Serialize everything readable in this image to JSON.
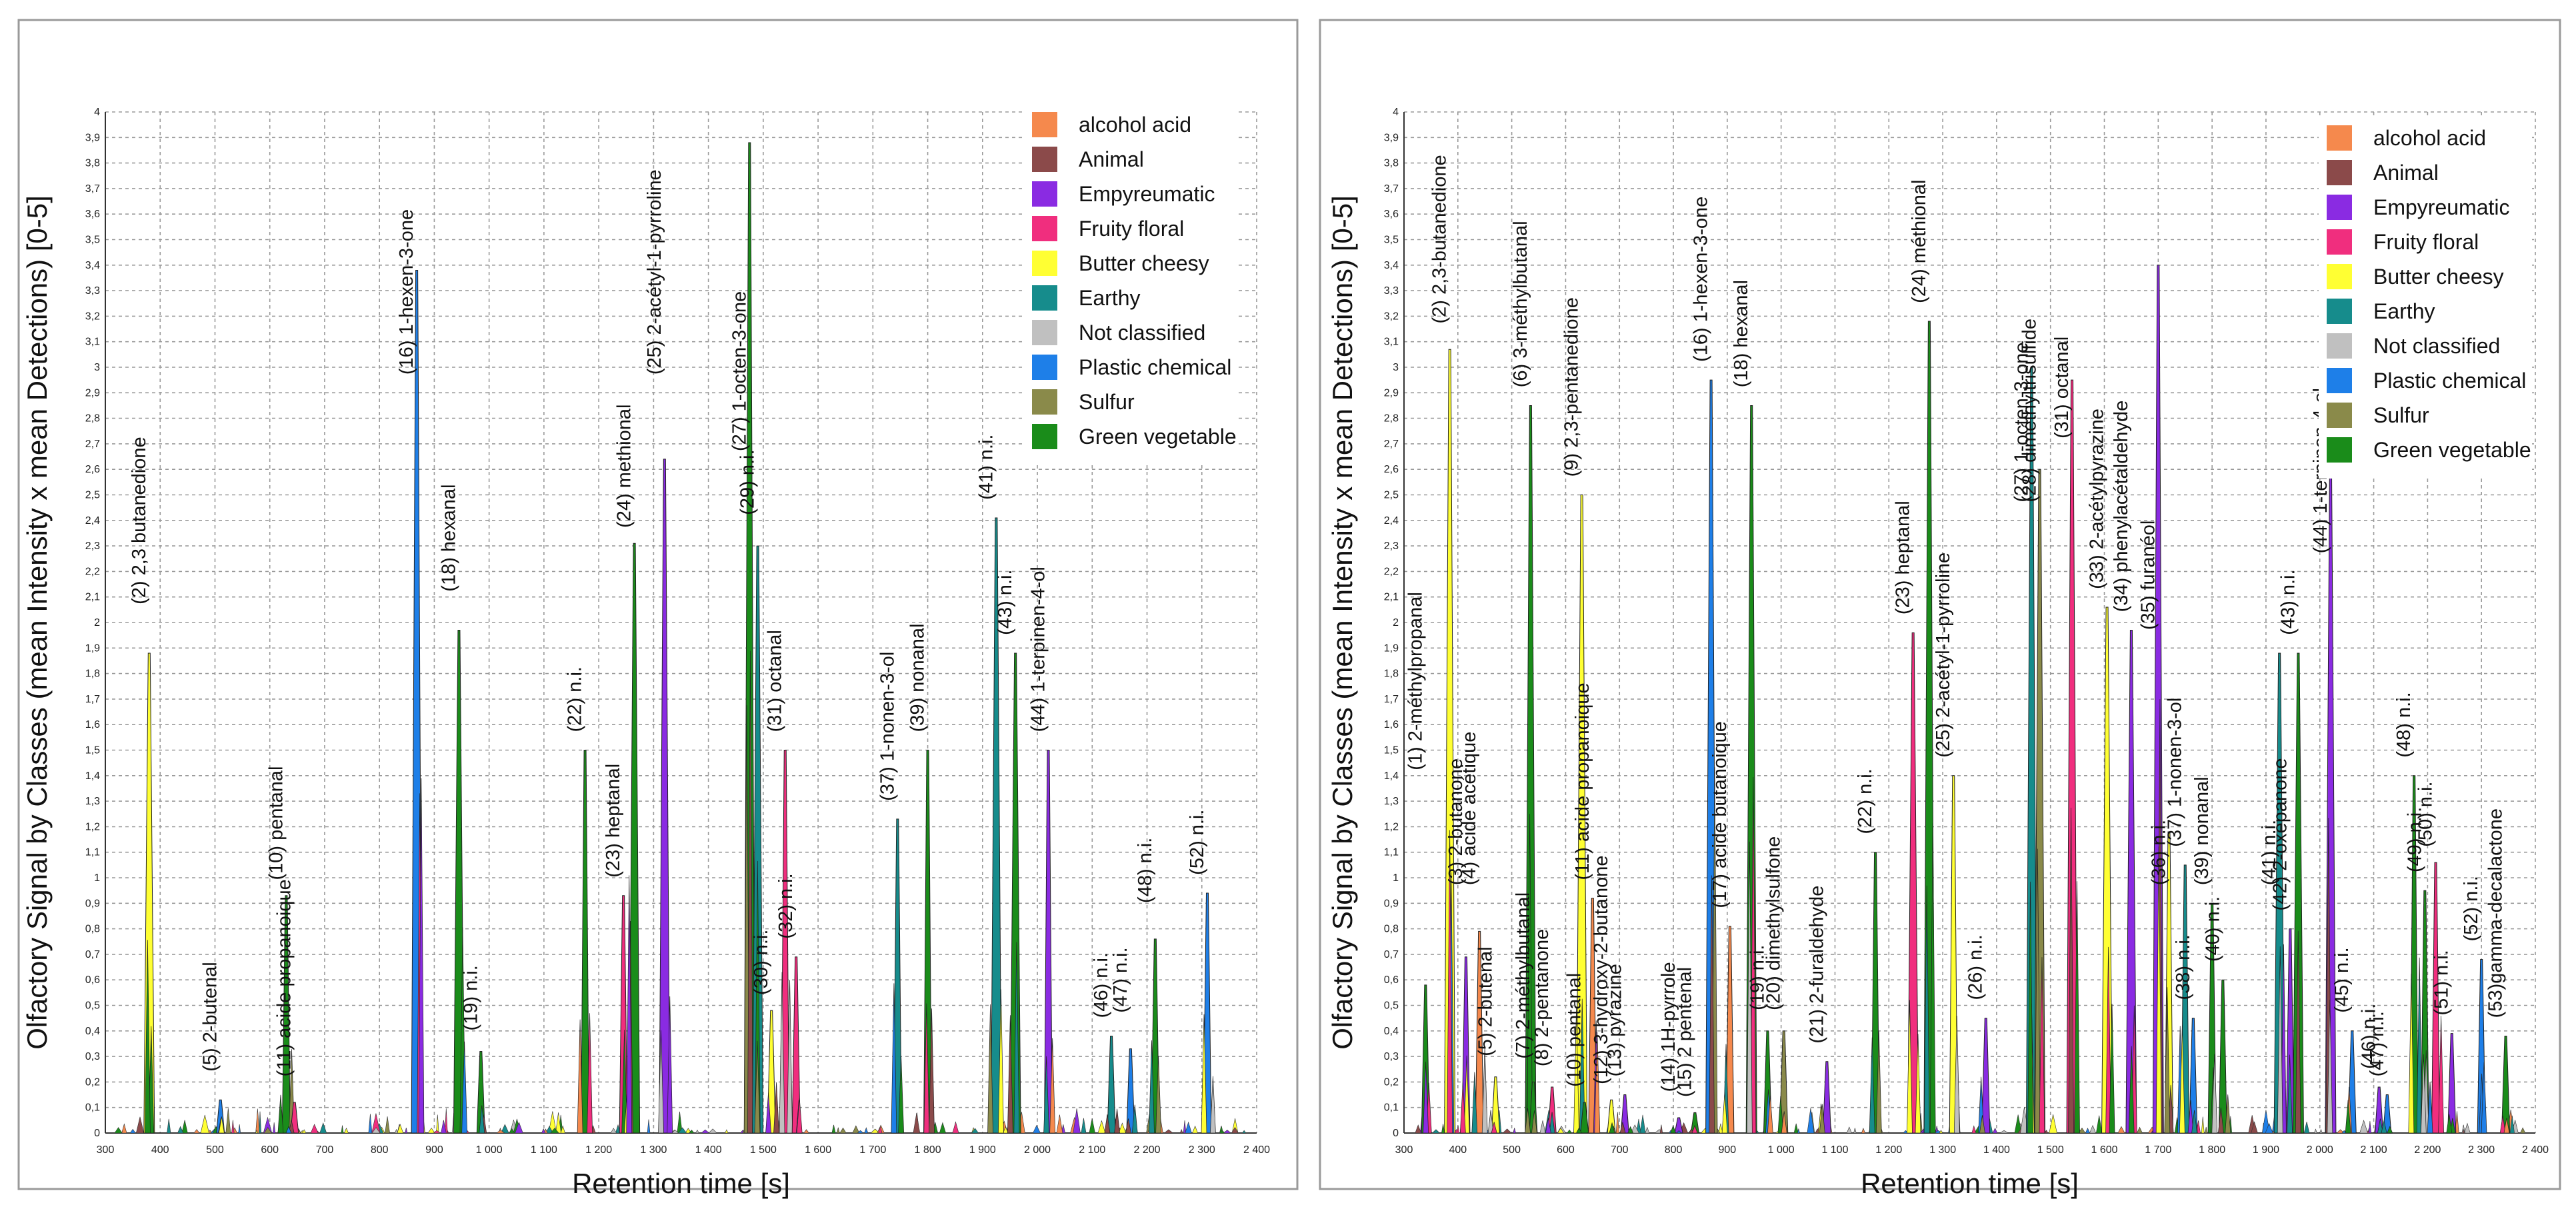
{
  "figure": {
    "divider": {
      "color": "#9a9a9a"
    }
  },
  "legend": {
    "items": [
      {
        "label": "alcohol acid",
        "color": "#F5894D"
      },
      {
        "label": "Animal",
        "color": "#8B4A4A"
      },
      {
        "label": "Empyreumatic",
        "color": "#8A2BE2"
      },
      {
        "label": "Fruity floral",
        "color": "#F02E7E"
      },
      {
        "label": "Butter cheesy",
        "color": "#FFFF33"
      },
      {
        "label": "Earthy",
        "color": "#168C8C"
      },
      {
        "label": "Not classified",
        "color": "#C0C0C0"
      },
      {
        "label": "Plastic chemical",
        "color": "#1E7FE8"
      },
      {
        "label": "Sulfur",
        "color": "#8A8A4A"
      },
      {
        "label": "Green vegetable",
        "color": "#1A8C1A"
      }
    ]
  },
  "chart_data": [
    {
      "type": "area",
      "title": "",
      "xlabel": "Retention time [s]",
      "ylabel": "Olfactory Signal by Classes (mean Intensity x mean Detections) [0-5]",
      "xlim": [
        300,
        2400
      ],
      "ylim": [
        0,
        4
      ],
      "grid": true,
      "legend": "top-right",
      "xticks": [
        "300",
        "400",
        "500",
        "600",
        "700",
        "800",
        "900",
        "1 000",
        "1 100",
        "1 200",
        "1 300",
        "1 400",
        "1 500",
        "1 600",
        "1 700",
        "1 800",
        "1 900",
        "2 000",
        "2 100",
        "2 200",
        "2 300",
        "2 400"
      ],
      "yticks": [
        "0",
        "0,1",
        "0,2",
        "0,3",
        "0,4",
        "0,5",
        "0,6",
        "0,7",
        "0,8",
        "0,9",
        "1",
        "1,1",
        "1,2",
        "1,3",
        "1,4",
        "1,5",
        "1,6",
        "1,7",
        "1,8",
        "1,9",
        "2",
        "2,1",
        "2,2",
        "2,3",
        "2,4",
        "2,5",
        "2,6",
        "2,7",
        "2,8",
        "2,9",
        "3",
        "3,1",
        "3,2",
        "3,3",
        "3,4",
        "3,5",
        "3,6",
        "3,7",
        "3,8",
        "3,9",
        "4"
      ],
      "peaks": [
        {
          "x": 380,
          "y": 1.88,
          "class": "Butter cheesy",
          "label": "(2) 2,3 butanedione",
          "ly": 2.05
        },
        {
          "x": 510,
          "y": 0.13,
          "class": "Plastic chemical",
          "label": "(5) 2-butenal",
          "ly": 0.22
        },
        {
          "x": 630,
          "y": 0.93,
          "class": "Green vegetable",
          "label": "(10) pentanal",
          "ly": 0.97
        },
        {
          "x": 645,
          "y": 0.12,
          "class": "Fruity floral",
          "label": "(11) acide propanoique",
          "ly": 0.2
        },
        {
          "x": 868,
          "y": 3.38,
          "class": "Plastic chemical",
          "label": "(16) 1-hexen-3-one",
          "ly": 2.95
        },
        {
          "x": 945,
          "y": 1.97,
          "class": "Green vegetable",
          "label": "(18) hexanal",
          "ly": 2.1
        },
        {
          "x": 985,
          "y": 0.32,
          "class": "Green vegetable",
          "label": "(19) n.i.",
          "ly": 0.38
        },
        {
          "x": 1175,
          "y": 1.5,
          "class": "Green vegetable",
          "label": "(22) n.i.",
          "ly": 1.55
        },
        {
          "x": 1245,
          "y": 0.93,
          "class": "Fruity floral",
          "label": "(23) heptanal",
          "ly": 0.98
        },
        {
          "x": 1265,
          "y": 2.31,
          "class": "Green vegetable",
          "label": "(24) methional",
          "ly": 2.35
        },
        {
          "x": 1320,
          "y": 2.64,
          "class": "Empyreumatic",
          "label": "(25) 2-acétyl-1-pyrroline",
          "ly": 2.95
        },
        {
          "x": 1475,
          "y": 3.88,
          "class": "Green vegetable",
          "label": "(27) 1-octen-3-one",
          "ly": 2.65
        },
        {
          "x": 1490,
          "y": 2.3,
          "class": "Earthy",
          "label": "(29) n.i.",
          "ly": 2.4
        },
        {
          "x": 1515,
          "y": 0.48,
          "class": "Butter cheesy",
          "label": "(30) n.i.",
          "ly": 0.52
        },
        {
          "x": 1540,
          "y": 1.5,
          "class": "Fruity floral",
          "label": "(31) octanal",
          "ly": 1.55
        },
        {
          "x": 1560,
          "y": 0.69,
          "class": "Fruity floral",
          "label": "(32) n.i.",
          "ly": 0.74
        },
        {
          "x": 1745,
          "y": 1.23,
          "class": "Earthy",
          "label": "(37) 1-nonen-3-ol",
          "ly": 1.28
        },
        {
          "x": 1800,
          "y": 1.5,
          "class": "Green vegetable",
          "label": "(39) nonanal",
          "ly": 1.55
        },
        {
          "x": 1925,
          "y": 2.41,
          "class": "Earthy",
          "label": "(41) n.i.",
          "ly": 2.46
        },
        {
          "x": 1960,
          "y": 1.88,
          "class": "Green vegetable",
          "label": "(43) n.i.",
          "ly": 1.93
        },
        {
          "x": 2020,
          "y": 1.5,
          "class": "Empyreumatic",
          "label": "(44) 1-terpinen-4-ol",
          "ly": 1.55
        },
        {
          "x": 2135,
          "y": 0.38,
          "class": "Earthy",
          "label": "(46) n.i.",
          "ly": 0.43
        },
        {
          "x": 2170,
          "y": 0.33,
          "class": "Plastic chemical",
          "label": "(47) n.i.",
          "ly": 0.45
        },
        {
          "x": 2215,
          "y": 0.76,
          "class": "Green vegetable",
          "label": "(48) n.i.",
          "ly": 0.88
        },
        {
          "x": 2310,
          "y": 0.94,
          "class": "Plastic chemical",
          "label": "(52) n.i.",
          "ly": 0.99
        }
      ]
    },
    {
      "type": "area",
      "title": "",
      "xlabel": "Retention time [s]",
      "ylabel": "Olfactory Signal by Classes (mean Intensity x mean Detections) [0-5]",
      "xlim": [
        300,
        2400
      ],
      "ylim": [
        0,
        4
      ],
      "grid": true,
      "legend": "top-right",
      "xticks": [
        "300",
        "400",
        "500",
        "600",
        "700",
        "800",
        "900",
        "1 000",
        "1 100",
        "1 200",
        "1 300",
        "1 400",
        "1 500",
        "1 600",
        "1 700",
        "1 800",
        "1 900",
        "2 000",
        "2 100",
        "2 200",
        "2 300",
        "2 400"
      ],
      "yticks": [
        "0",
        "0,1",
        "0,2",
        "0,3",
        "0,4",
        "0,5",
        "0,6",
        "0,7",
        "0,8",
        "0,9",
        "1",
        "1,1",
        "1,2",
        "1,3",
        "1,4",
        "1,5",
        "1,6",
        "1,7",
        "1,8",
        "1,9",
        "2",
        "2,1",
        "2,2",
        "2,3",
        "2,4",
        "2,5",
        "2,6",
        "2,7",
        "2,8",
        "2,9",
        "3",
        "3,1",
        "3,2",
        "3,3",
        "3,4",
        "3,5",
        "3,6",
        "3,7",
        "3,8",
        "3,9",
        "4"
      ],
      "peaks": [
        {
          "x": 340,
          "y": 0.58,
          "class": "Green vegetable",
          "label": "(1) 2-méthylpropanal",
          "ly": 1.4
        },
        {
          "x": 385,
          "y": 3.07,
          "class": "Butter cheesy",
          "label": "(2) 2,3-butanedione",
          "ly": 3.15
        },
        {
          "x": 415,
          "y": 0.69,
          "class": "Empyreumatic",
          "label": "(3) 2-butanone",
          "ly": 0.95
        },
        {
          "x": 440,
          "y": 0.79,
          "class": "alcohol acid",
          "label": "(4) acide acétique",
          "ly": 0.95
        },
        {
          "x": 470,
          "y": 0.22,
          "class": "Butter cheesy",
          "label": "(5) 2-butenal",
          "ly": 0.28
        },
        {
          "x": 535,
          "y": 2.85,
          "class": "Green vegetable",
          "label": "(6) 3-méthylbutanal",
          "ly": 2.9
        },
        {
          "x": 540,
          "y": 0.2,
          "class": "Green vegetable",
          "label": "(7) 2-méthylbutanal",
          "ly": 0.27
        },
        {
          "x": 575,
          "y": 0.18,
          "class": "Fruity floral",
          "label": "(8) 2-pentanone",
          "ly": 0.24
        },
        {
          "x": 630,
          "y": 2.5,
          "class": "Butter cheesy",
          "label": "(9) 2,3-pentanedione",
          "ly": 2.55
        },
        {
          "x": 635,
          "y": 0.12,
          "class": "Green vegetable",
          "label": "(10) pentanal",
          "ly": 0.16
        },
        {
          "x": 650,
          "y": 0.92,
          "class": "alcohol acid",
          "label": "(11) acide propanoique",
          "ly": 0.97
        },
        {
          "x": 685,
          "y": 0.13,
          "class": "Butter cheesy",
          "label": "(12) 3-hydroxy-2-butanone",
          "ly": 0.17
        },
        {
          "x": 710,
          "y": 0.15,
          "class": "Empyreumatic",
          "label": "(13) pyrazine",
          "ly": 0.2
        },
        {
          "x": 810,
          "y": 0.06,
          "class": "Empyreumatic",
          "label": "(14) 1H-pyrrole",
          "ly": 0.14
        },
        {
          "x": 840,
          "y": 0.08,
          "class": "Green vegetable",
          "label": "(15) 2 pentenal",
          "ly": 0.12
        },
        {
          "x": 870,
          "y": 2.95,
          "class": "Plastic chemical",
          "label": "(16) 1-hexen-3-one",
          "ly": 3.0
        },
        {
          "x": 905,
          "y": 0.81,
          "class": "alcohol acid",
          "label": "(17) acide butanoique",
          "ly": 0.86
        },
        {
          "x": 945,
          "y": 2.85,
          "class": "Green vegetable",
          "label": "(18) hexanal",
          "ly": 2.9
        },
        {
          "x": 975,
          "y": 0.4,
          "class": "Green vegetable",
          "label": "(19) n.i.",
          "ly": 0.46
        },
        {
          "x": 1005,
          "y": 0.4,
          "class": "Sulfur",
          "label": "(20) dimethylsulfone",
          "ly": 0.46
        },
        {
          "x": 1085,
          "y": 0.28,
          "class": "Empyreumatic",
          "label": "(21) 2-furaldehyde",
          "ly": 0.33
        },
        {
          "x": 1175,
          "y": 1.1,
          "class": "Green vegetable",
          "label": "(22) n.i.",
          "ly": 1.15
        },
        {
          "x": 1245,
          "y": 1.96,
          "class": "Fruity floral",
          "label": "(23) heptanal",
          "ly": 2.01
        },
        {
          "x": 1275,
          "y": 3.18,
          "class": "Green vegetable",
          "label": "(24) méthional",
          "ly": 3.23
        },
        {
          "x": 1320,
          "y": 1.4,
          "class": "Butter cheesy",
          "label": "(25) 2-acétyl-1-pyrroline",
          "ly": 1.45
        },
        {
          "x": 1380,
          "y": 0.45,
          "class": "Empyreumatic",
          "label": "(26) n.i.",
          "ly": 0.5
        },
        {
          "x": 1465,
          "y": 3.0,
          "class": "Earthy",
          "label": "(27) 1-octen-3-one",
          "ly": 2.45
        },
        {
          "x": 1480,
          "y": 2.6,
          "class": "Sulfur",
          "label": "(28) diméthyltrisulfide",
          "ly": 2.45
        },
        {
          "x": 1540,
          "y": 2.95,
          "class": "Fruity floral",
          "label": "(31) octanal",
          "ly": 2.7
        },
        {
          "x": 1605,
          "y": 2.06,
          "class": "Butter cheesy",
          "label": "(33) 2-acétylpyrazine",
          "ly": 2.11
        },
        {
          "x": 1650,
          "y": 1.97,
          "class": "Empyreumatic",
          "label": "(34) phenylacétaldehyde",
          "ly": 2.02
        },
        {
          "x": 1700,
          "y": 3.4,
          "class": "Empyreumatic",
          "label": "(35) furanéol",
          "ly": 1.95
        },
        {
          "x": 1720,
          "y": 1.18,
          "class": "Butter cheesy",
          "label": "(36) n.i.",
          "ly": 0.95
        },
        {
          "x": 1750,
          "y": 1.05,
          "class": "Earthy",
          "label": "(37) 1-nonen-3-ol",
          "ly": 1.1
        },
        {
          "x": 1765,
          "y": 0.45,
          "class": "Plastic chemical",
          "label": "(38) n.i.",
          "ly": 0.5
        },
        {
          "x": 1800,
          "y": 0.9,
          "class": "Green vegetable",
          "label": "(39) nonanal",
          "ly": 0.95
        },
        {
          "x": 1820,
          "y": 0.6,
          "class": "Green vegetable",
          "label": "(40) n.i.",
          "ly": 0.65
        },
        {
          "x": 1925,
          "y": 1.88,
          "class": "Earthy",
          "label": "(41) n.i.",
          "ly": 0.95
        },
        {
          "x": 1945,
          "y": 0.8,
          "class": "Empyreumatic",
          "label": "(42) 2-oxepanone",
          "ly": 0.85
        },
        {
          "x": 1960,
          "y": 1.88,
          "class": "Green vegetable",
          "label": "(43) n.i.",
          "ly": 1.93
        },
        {
          "x": 2020,
          "y": 2.62,
          "class": "Empyreumatic",
          "label": "(44) 1-terpinen-4-ol",
          "ly": 2.25
        },
        {
          "x": 2060,
          "y": 0.4,
          "class": "Plastic chemical",
          "label": "(45) n.i.",
          "ly": 0.45
        },
        {
          "x": 2110,
          "y": 0.18,
          "class": "Empyreumatic",
          "label": "(46) n.i.",
          "ly": 0.23
        },
        {
          "x": 2125,
          "y": 0.15,
          "class": "Plastic chemical",
          "label": "(47) n.i.",
          "ly": 0.2
        },
        {
          "x": 2175,
          "y": 1.4,
          "class": "Green vegetable",
          "label": "(48) n.i.",
          "ly": 1.45
        },
        {
          "x": 2195,
          "y": 0.95,
          "class": "Green vegetable",
          "label": "(49) n.i.",
          "ly": 1.0
        },
        {
          "x": 2215,
          "y": 1.06,
          "class": "Fruity floral",
          "label": "(50) n.i.",
          "ly": 1.1
        },
        {
          "x": 2245,
          "y": 0.39,
          "class": "Empyreumatic",
          "label": "(51) n.i.",
          "ly": 0.44
        },
        {
          "x": 2300,
          "y": 0.68,
          "class": "Plastic chemical",
          "label": "(52) n.i.",
          "ly": 0.73
        },
        {
          "x": 2345,
          "y": 0.38,
          "class": "Green vegetable",
          "label": "(53)gamma-decalactone",
          "ly": 0.43
        }
      ]
    }
  ]
}
